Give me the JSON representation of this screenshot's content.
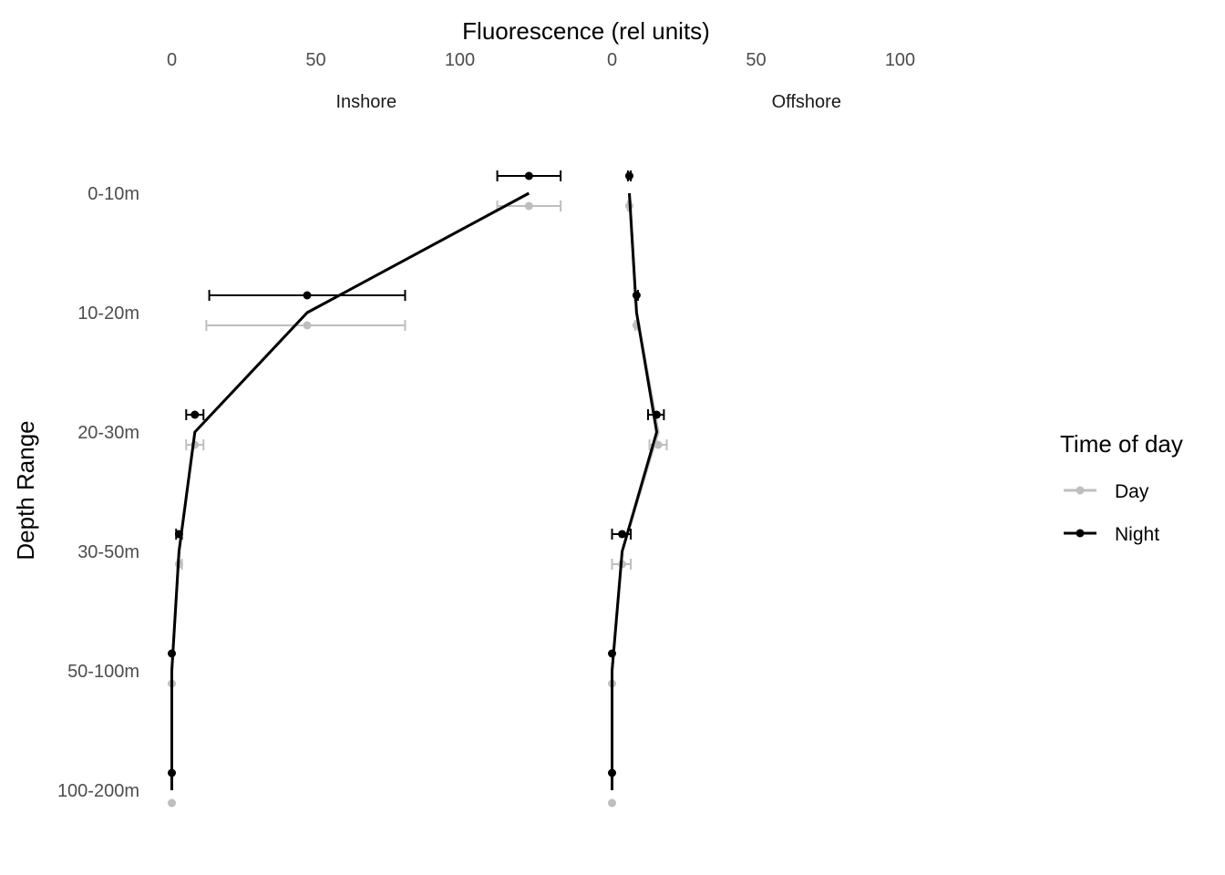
{
  "chart_data": {
    "type": "line",
    "title": "",
    "xlabel": "Fluorescence (rel units)",
    "ylabel": "Depth Range",
    "xlim": [
      0,
      140
    ],
    "x_ticks": [
      0,
      50,
      100
    ],
    "x_axis_position": "top",
    "categories": [
      "0-10m",
      "10-20m",
      "20-30m",
      "30-50m",
      "50-100m",
      "100-200m"
    ],
    "facets": [
      {
        "label": "Inshore",
        "series": [
          {
            "name": "Day",
            "values": [
              124,
              47,
              8,
              2.5,
              0,
              0
            ],
            "error_low": [
              113,
              12,
              5,
              2,
              0,
              0
            ],
            "error_high": [
              135,
              81,
              11,
              3.5,
              0,
              0
            ]
          },
          {
            "name": "Night",
            "values": [
              124,
              47,
              8,
              2.5,
              0,
              0
            ],
            "error_low": [
              113,
              13,
              5,
              1.5,
              0,
              0
            ],
            "error_high": [
              135,
              81,
              11,
              3.5,
              0,
              0
            ]
          }
        ]
      },
      {
        "label": "Offshore",
        "series": [
          {
            "name": "Day",
            "values": [
              6,
              8.5,
              16,
              3.5,
              0,
              0
            ],
            "error_low": [
              5.5,
              8,
              13,
              0,
              0,
              0
            ],
            "error_high": [
              6.5,
              9,
              19,
              6.5,
              0,
              0
            ]
          },
          {
            "name": "Night",
            "values": [
              6,
              8.5,
              15.5,
              3.5,
              0,
              0
            ],
            "error_low": [
              5.5,
              8,
              12.5,
              0,
              0,
              0
            ],
            "error_high": [
              6.5,
              9,
              18,
              6.5,
              0,
              0
            ]
          }
        ]
      }
    ],
    "legend": {
      "title": "Time of day",
      "position": "right",
      "entries": [
        {
          "name": "Day",
          "color": "#bebebe"
        },
        {
          "name": "Night",
          "color": "#000000"
        }
      ]
    },
    "grid": false
  }
}
